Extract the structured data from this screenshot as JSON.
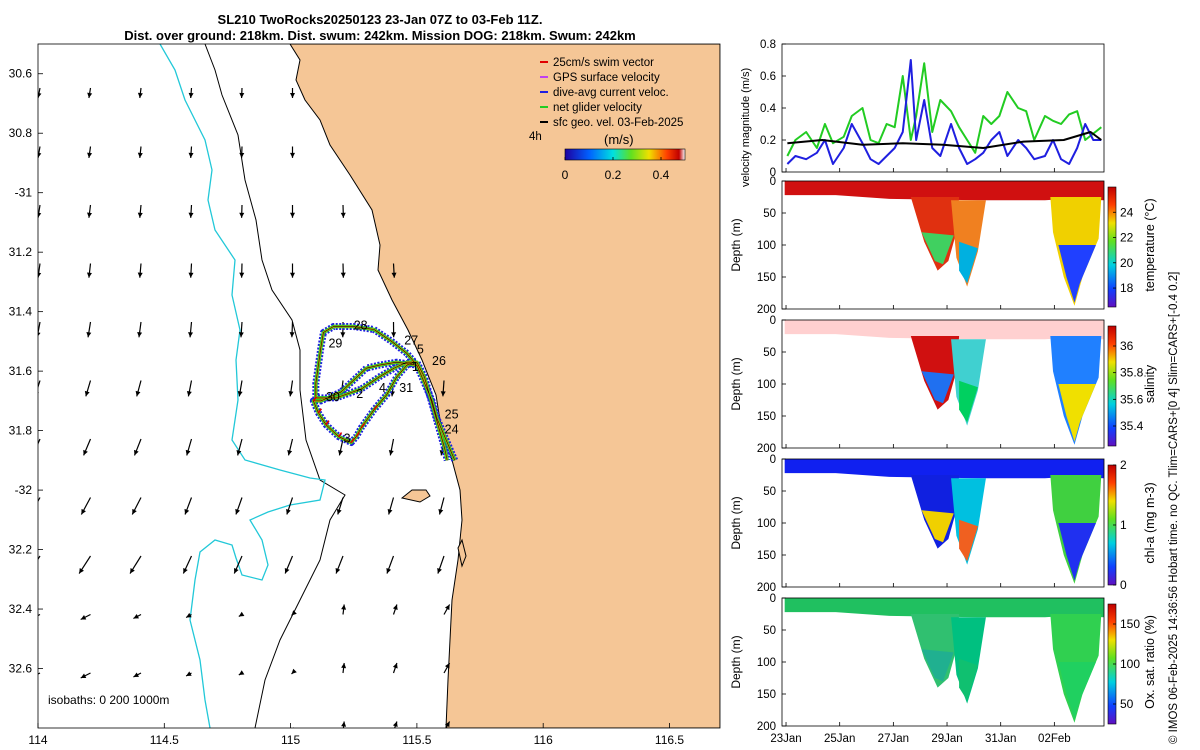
{
  "header": {
    "line1": "SL210 TwoRocks20250123 23-Jan 07Z to 03-Feb 11Z.",
    "line2": "Dist. over ground: 218km. Dist. swum: 242km. Mission DOG: 218km. Swum: 242km"
  },
  "footer_note": "© IMOS 06-Feb-2025 14:36:56 Hobart time. no QC. Tlim=CARS+[0 4] Slim=CARS+[-0.4 0.2]",
  "colors": {
    "land": "#f5c696",
    "coast": "#000000",
    "isobath_200": "#000000",
    "isobath_1000": "#22c8d8",
    "swim": "#e00000",
    "gps": "#c040f0",
    "dive_avg": "#1f1fe0",
    "net": "#22cc22",
    "sfc_geo": "#000000"
  },
  "chart_data": [
    {
      "type": "map",
      "name": "glider track map",
      "xlim": [
        114,
        116.7
      ],
      "ylim": [
        -32.8,
        -30.5
      ],
      "xticks": [
        114,
        114.5,
        115,
        115.5,
        116,
        116.5
      ],
      "xtick_labels": [
        "114",
        "114.5",
        "115",
        "115.5",
        "116",
        "116.5"
      ],
      "yticks": [
        -30.6,
        -30.8,
        -31,
        -31.2,
        -31.4,
        -31.6,
        -31.8,
        -32,
        -32.2,
        -32.4,
        -32.6
      ],
      "ytick_labels": [
        "30.6",
        "30.8",
        "-31",
        "31.2",
        "31.4",
        "31.6",
        "31.8",
        "-32",
        "32.2",
        "32.4",
        "32.6"
      ],
      "legend": {
        "items": [
          {
            "label": "25cm/s swim vector",
            "color": "#e00000"
          },
          {
            "label": "GPS surface velocity",
            "color": "#c040f0"
          },
          {
            "label": "dive-avg current veloc.",
            "color": "#1f1fe0"
          },
          {
            "label": "net glider velocity",
            "color": "#22cc22"
          },
          {
            "label": "sfc geo. vel. 03-Feb-2025",
            "color": "#000000"
          }
        ],
        "interval": "4h",
        "unit": "(m/s)",
        "colorbar_ticks": [
          0,
          0.2,
          0.4
        ],
        "colorbar_range": [
          0,
          0.5
        ]
      },
      "isobath_note": "isobaths: 0   200  1000m",
      "track": [
        [
          115.65,
          -31.9
        ],
        [
          115.62,
          -31.84
        ],
        [
          115.58,
          -31.76
        ],
        [
          115.56,
          -31.7
        ],
        [
          115.53,
          -31.64
        ],
        [
          115.5,
          -31.58
        ],
        [
          115.42,
          -31.57
        ],
        [
          115.35,
          -31.58
        ],
        [
          115.3,
          -31.59
        ],
        [
          115.25,
          -31.63
        ],
        [
          115.2,
          -31.67
        ],
        [
          115.12,
          -31.7
        ],
        [
          115.09,
          -31.7
        ],
        [
          115.11,
          -31.74
        ],
        [
          115.14,
          -31.78
        ],
        [
          115.19,
          -31.82
        ],
        [
          115.24,
          -31.84
        ],
        [
          115.26,
          -31.82
        ],
        [
          115.28,
          -31.79
        ],
        [
          115.33,
          -31.73
        ],
        [
          115.38,
          -31.68
        ],
        [
          115.42,
          -31.62
        ],
        [
          115.46,
          -31.58
        ],
        [
          115.49,
          -31.57
        ],
        [
          115.46,
          -31.54
        ],
        [
          115.4,
          -31.5
        ],
        [
          115.33,
          -31.46
        ],
        [
          115.25,
          -31.45
        ],
        [
          115.17,
          -31.45
        ],
        [
          115.13,
          -31.47
        ],
        [
          115.12,
          -31.52
        ],
        [
          115.11,
          -31.58
        ],
        [
          115.1,
          -31.64
        ],
        [
          115.1,
          -31.69
        ],
        [
          115.18,
          -31.69
        ],
        [
          115.28,
          -31.66
        ],
        [
          115.35,
          -31.62
        ],
        [
          115.41,
          -31.59
        ],
        [
          115.46,
          -31.57
        ],
        [
          115.5,
          -31.57
        ],
        [
          115.53,
          -31.62
        ],
        [
          115.55,
          -31.68
        ],
        [
          115.57,
          -31.74
        ],
        [
          115.59,
          -31.8
        ],
        [
          115.61,
          -31.86
        ],
        [
          115.62,
          -31.9
        ]
      ],
      "day_labels": [
        {
          "text": "28",
          "lon": 115.25,
          "lat": -31.46
        },
        {
          "text": "29",
          "lon": 115.15,
          "lat": -31.52
        },
        {
          "text": "27",
          "lon": 115.45,
          "lat": -31.51
        },
        {
          "text": "5",
          "lon": 115.5,
          "lat": -31.54
        },
        {
          "text": "26",
          "lon": 115.56,
          "lat": -31.58
        },
        {
          "text": "1",
          "lon": 115.48,
          "lat": -31.6
        },
        {
          "text": "31",
          "lon": 115.43,
          "lat": -31.67
        },
        {
          "text": "4",
          "lon": 115.35,
          "lat": -31.67
        },
        {
          "text": "2",
          "lon": 115.26,
          "lat": -31.69
        },
        {
          "text": "30",
          "lon": 115.14,
          "lat": -31.7
        },
        {
          "text": "25",
          "lon": 115.61,
          "lat": -31.76
        },
        {
          "text": "24",
          "lon": 115.61,
          "lat": -31.81
        },
        {
          "text": "3",
          "lon": 115.21,
          "lat": -31.84
        }
      ]
    },
    {
      "type": "line",
      "name": "velocity magnitude",
      "ylabel": "velocity magnitude (m/s)",
      "ylim": [
        0,
        0.8
      ],
      "yticks": [
        0,
        0.2,
        0.4,
        0.6,
        0.8
      ],
      "xlim": [
        0,
        12
      ],
      "series": [
        {
          "name": "net glider velocity",
          "color": "#22cc22",
          "x": [
            0.2,
            0.5,
            0.9,
            1.3,
            1.6,
            1.9,
            2.3,
            2.6,
            3.0,
            3.3,
            3.6,
            3.9,
            4.2,
            4.5,
            4.8,
            5.0,
            5.3,
            5.6,
            5.9,
            6.3,
            6.6,
            6.9,
            7.2,
            7.5,
            7.8,
            8.1,
            8.4,
            8.8,
            9.1,
            9.4,
            9.8,
            10.1,
            10.4,
            10.7,
            11.0,
            11.3,
            11.6,
            11.9
          ],
          "values": [
            0.1,
            0.2,
            0.25,
            0.15,
            0.3,
            0.18,
            0.22,
            0.35,
            0.4,
            0.2,
            0.18,
            0.3,
            0.28,
            0.6,
            0.2,
            0.35,
            0.68,
            0.25,
            0.45,
            0.38,
            0.28,
            0.2,
            0.12,
            0.35,
            0.3,
            0.35,
            0.5,
            0.4,
            0.38,
            0.2,
            0.35,
            0.32,
            0.3,
            0.36,
            0.38,
            0.2,
            0.24,
            0.28
          ]
        },
        {
          "name": "dive-avg current veloc.",
          "color": "#1f1fe0",
          "x": [
            0.2,
            0.5,
            0.9,
            1.3,
            1.6,
            1.9,
            2.3,
            2.6,
            3.0,
            3.3,
            3.6,
            3.9,
            4.2,
            4.5,
            4.8,
            5.0,
            5.3,
            5.6,
            5.9,
            6.3,
            6.6,
            6.9,
            7.2,
            7.5,
            7.8,
            8.1,
            8.4,
            8.8,
            9.1,
            9.4,
            9.8,
            10.1,
            10.4,
            10.7,
            11.0,
            11.3,
            11.6,
            11.9
          ],
          "values": [
            0.05,
            0.1,
            0.08,
            0.12,
            0.2,
            0.05,
            0.15,
            0.3,
            0.18,
            0.08,
            0.05,
            0.1,
            0.15,
            0.25,
            0.7,
            0.2,
            0.45,
            0.15,
            0.1,
            0.3,
            0.15,
            0.05,
            0.08,
            0.12,
            0.2,
            0.25,
            0.1,
            0.2,
            0.15,
            0.08,
            0.1,
            0.2,
            0.08,
            0.05,
            0.15,
            0.3,
            0.2,
            0.2
          ]
        },
        {
          "name": "sfc geo. vel.",
          "color": "#000000",
          "x": [
            0.2,
            1.5,
            3.0,
            4.5,
            6.0,
            7.5,
            9.0,
            10.5,
            11.5,
            11.9
          ],
          "values": [
            0.18,
            0.2,
            0.17,
            0.18,
            0.17,
            0.15,
            0.19,
            0.2,
            0.25,
            0.2
          ]
        }
      ]
    },
    {
      "type": "heatmap",
      "name": "temperature section",
      "ylabel": "Depth (m)",
      "colorbar_label": "temperature (°C)",
      "ylim": [
        0,
        200
      ],
      "yticks": [
        0,
        50,
        100,
        150,
        200
      ],
      "colorbar_ticks": [
        18,
        20,
        22,
        24
      ],
      "colorbar_range": [
        16.5,
        26
      ]
    },
    {
      "type": "heatmap",
      "name": "salinity section",
      "ylabel": "Depth (m)",
      "colorbar_label": "salinity",
      "ylim": [
        0,
        200
      ],
      "yticks": [
        0,
        50,
        100,
        150,
        200
      ],
      "colorbar_ticks": [
        35.4,
        35.6,
        35.8,
        36
      ],
      "colorbar_range": [
        35.25,
        36.15
      ]
    },
    {
      "type": "heatmap",
      "name": "chlorophyll section",
      "ylabel": "Depth (m)",
      "colorbar_label": "chl-a (mg m-3)",
      "ylim": [
        0,
        200
      ],
      "yticks": [
        0,
        50,
        100,
        150,
        200
      ],
      "colorbar_ticks": [
        0,
        1,
        2
      ],
      "colorbar_range": [
        0,
        2
      ]
    },
    {
      "type": "heatmap",
      "name": "oxygen saturation section",
      "ylabel": "Depth (m)",
      "colorbar_label": "Ox. sat. ratio (%)",
      "ylim": [
        0,
        200
      ],
      "yticks": [
        0,
        50,
        100,
        150,
        200
      ],
      "colorbar_ticks": [
        50,
        100,
        150
      ],
      "colorbar_range": [
        25,
        175
      ],
      "xtick_labels": [
        "23Jan",
        "25Jan",
        "27Jan",
        "29Jan",
        "31Jan",
        "02Feb"
      ],
      "xticks": [
        0.15,
        2.15,
        4.15,
        6.15,
        8.15,
        10.15
      ],
      "xlim": [
        0,
        12
      ]
    }
  ]
}
